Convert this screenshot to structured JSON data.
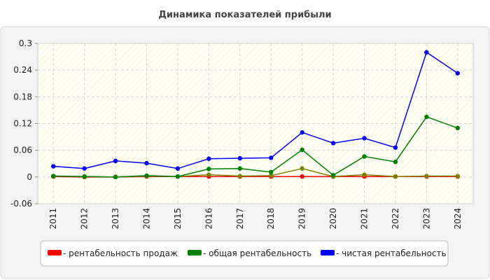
{
  "chart_data": {
    "type": "line",
    "title": "Динамика показателей прибыли",
    "categories": [
      "2011",
      "2012",
      "2013",
      "2014",
      "2015",
      "2016",
      "2017",
      "2018",
      "2019",
      "2020",
      "2021",
      "2022",
      "2023",
      "2024"
    ],
    "y_ticks": [
      "0.3",
      "0.24",
      "0.18",
      "0.12",
      "0.06",
      "0",
      "-0.06"
    ],
    "ylim": [
      -0.06,
      0.3
    ],
    "grid": true,
    "legend_position": "bottom",
    "series": [
      {
        "name": "- рентабельность продаж",
        "color": "#ff0000",
        "values": [
          0.001,
          0.0,
          0.0,
          0.001,
          0.001,
          0.001,
          0.001,
          0.001,
          0.001,
          0.001,
          0.001,
          0.001,
          0.001,
          0.001
        ]
      },
      {
        "name": "",
        "color": "#808000",
        "values": [
          0.002,
          0.001,
          0.0,
          0.002,
          0.001,
          0.005,
          0.002,
          0.003,
          0.019,
          0.001,
          0.005,
          0.001,
          0.002,
          0.002
        ]
      },
      {
        "name": "- общая рентабельность",
        "color": "#008000",
        "values": [
          0.002,
          0.001,
          0.0,
          0.003,
          0.001,
          0.018,
          0.019,
          0.011,
          0.061,
          0.004,
          0.046,
          0.034,
          0.135,
          0.11
        ]
      },
      {
        "name": "- чистая рентабельность",
        "color": "#0000ff",
        "values": [
          0.024,
          0.019,
          0.036,
          0.031,
          0.019,
          0.041,
          0.042,
          0.043,
          0.1,
          0.076,
          0.087,
          0.066,
          0.28,
          0.233
        ]
      }
    ]
  }
}
